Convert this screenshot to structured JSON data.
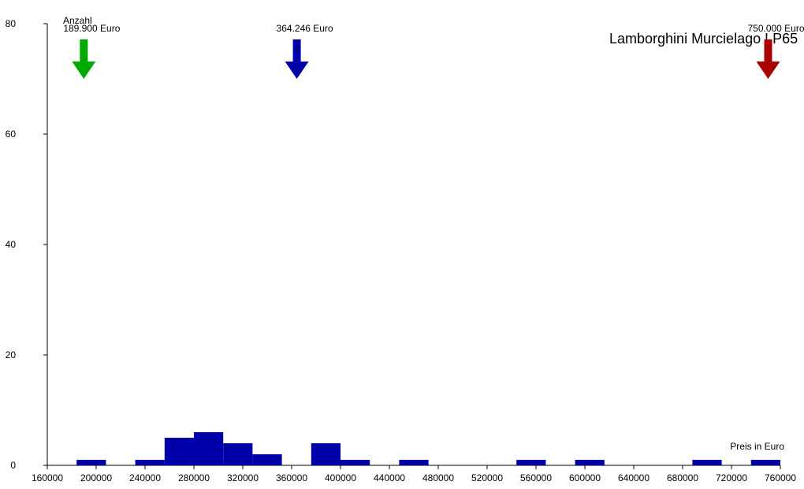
{
  "chart_data": {
    "type": "histogram",
    "title": "Lamborghini Murcielago LP65",
    "y_label": "Anzahl",
    "x_label": "Preis in Euro",
    "bins": [
      184000,
      208000,
      232000,
      256000,
      280000,
      304000,
      328000,
      352000,
      376000,
      400000,
      424000,
      448000,
      472000,
      496000,
      520000,
      544000,
      568000,
      592000,
      616000,
      640000,
      664000,
      688000,
      712000,
      736000,
      760000
    ],
    "values": [
      1,
      0,
      1,
      5,
      6,
      4,
      2,
      0,
      4,
      1,
      0,
      1,
      0,
      0,
      0,
      1,
      0,
      1,
      0,
      0,
      0,
      1,
      0,
      1
    ],
    "color": "#0000a8",
    "xlim": [
      160000,
      760000
    ],
    "xticks": [
      160000,
      200000,
      240000,
      280000,
      320000,
      360000,
      400000,
      440000,
      480000,
      520000,
      560000,
      600000,
      640000,
      680000,
      720000,
      760000
    ],
    "ylim": [
      0,
      80
    ],
    "yticks": [
      0,
      20,
      40,
      60,
      80
    ],
    "markers": [
      {
        "value": 189900,
        "label": "189.900 Euro",
        "color": "#00aa00"
      },
      {
        "value": 364246,
        "label": "364.246 Euro",
        "color": "#0000a8"
      },
      {
        "value": 750000,
        "label": "750.000 Euro",
        "color": "#aa0000"
      }
    ]
  }
}
